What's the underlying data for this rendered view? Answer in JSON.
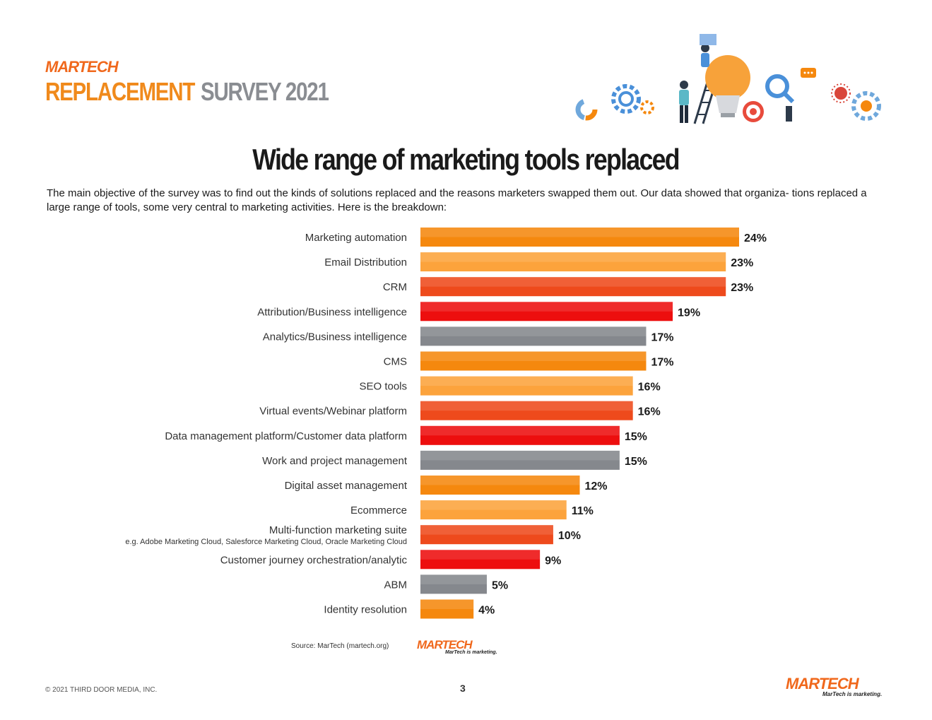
{
  "header": {
    "brand": "MARTECH",
    "survey_title_a": "REPLACEMENT",
    "survey_title_b": "SURVEY 2021"
  },
  "headline": "Wide range of marketing tools replaced",
  "intro": "The main objective of the survey was to find out the kinds of solutions replaced and the reasons marketers swapped them out. Our data showed that organiza- tions replaced a large range of tools, some very central to marketing activities. Here is the breakdown:",
  "colors": {
    "orange": "#f5880e",
    "light_orange": "#fca33c",
    "red_orange": "#ee4a1c",
    "red": "#ed0e0e",
    "gray": "#85888d",
    "brand": "#f0681c"
  },
  "chart_data": {
    "type": "bar",
    "orientation": "horizontal",
    "title": "Wide range of marketing tools replaced",
    "xlabel": "",
    "ylabel": "",
    "xlim": [
      0,
      24
    ],
    "unit": "%",
    "categories": [
      "Marketing automation",
      "Email Distribution",
      "CRM",
      "Attribution/Business intelligence",
      "Analytics/Business intelligence",
      "CMS",
      "SEO tools",
      "Virtual events/Webinar platform",
      "Data management platform/Customer data platform",
      "Work and project management",
      "Digital asset management",
      "Ecommerce",
      "Multi-function marketing suite",
      "Customer journey orchestration/analytic",
      "ABM",
      "Identity resolution"
    ],
    "sublabels": {
      "12": "e.g. Adobe Marketing Cloud, Salesforce Marketing Cloud, Oracle Marketing Cloud"
    },
    "values": [
      24,
      23,
      23,
      19,
      17,
      17,
      16,
      16,
      15,
      15,
      12,
      11,
      10,
      9,
      5,
      4
    ],
    "value_labels": [
      "24%",
      "23%",
      "23%",
      "19%",
      "17%",
      "17%",
      "16%",
      "16%",
      "15%",
      "15%",
      "12%",
      "11%",
      "10%",
      "9%",
      "5%",
      "4%"
    ],
    "bar_colors": [
      "#f5880e",
      "#fca33c",
      "#ee4a1c",
      "#ed0e0e",
      "#85888d",
      "#f5880e",
      "#fca33c",
      "#ee4a1c",
      "#ed0e0e",
      "#85888d",
      "#f5880e",
      "#fca33c",
      "#ee4a1c",
      "#ed0e0e",
      "#85888d",
      "#f5880e"
    ],
    "grid": false,
    "legend": "none"
  },
  "source": "Source: MarTech (martech.org)",
  "source_logo": {
    "brand": "MARTECH",
    "tagline": "MarTech is marketing."
  },
  "footer": {
    "copyright": "© 2021 THIRD DOOR MEDIA, INC.",
    "page": "3",
    "brand": "MARTECH",
    "tagline": "MarTech is marketing."
  }
}
